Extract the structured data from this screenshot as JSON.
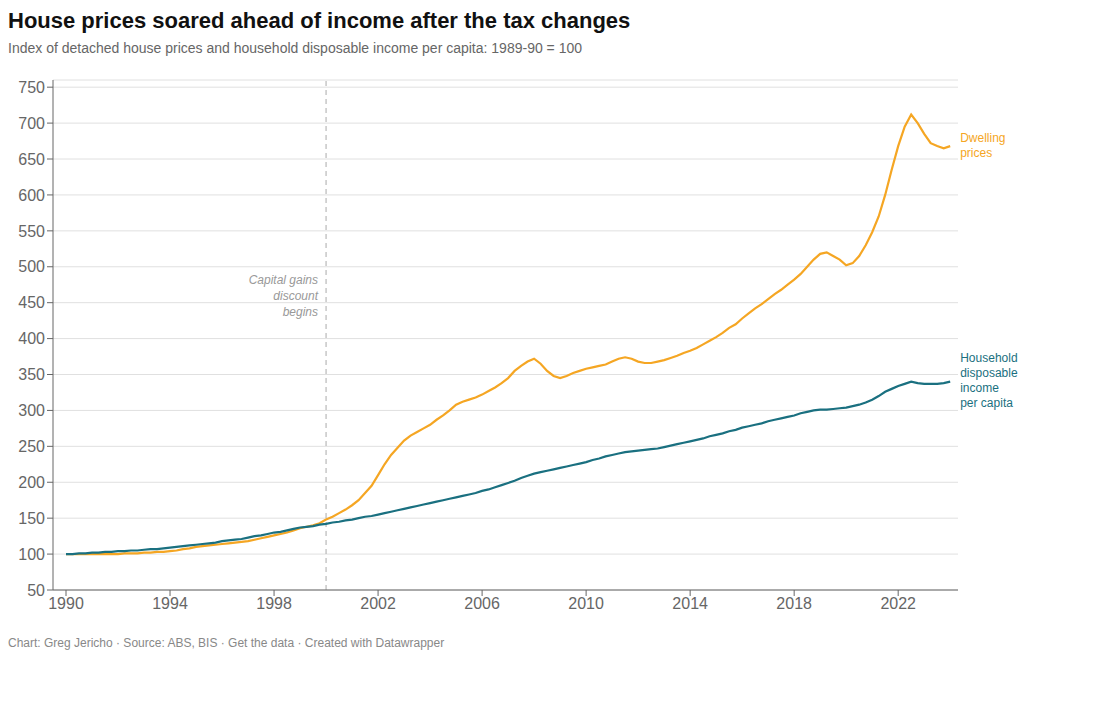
{
  "chart_data": {
    "type": "line",
    "title": "House prices soared ahead of income after the tax changes",
    "subtitle": "Index of detached house prices and household disposable income per capita: 1989-90 = 100",
    "caption": "Chart: Greg Jericho · Source: ABS, BIS · Get the data · Created with Datawrapper",
    "annotations": [
      {
        "text": "Capital gains\ndiscount\nbegins",
        "x": 2000,
        "y": 490
      }
    ],
    "x": [
      1990,
      1990.25,
      1990.5,
      1990.75,
      1991,
      1991.25,
      1991.5,
      1991.75,
      1992,
      1992.25,
      1992.5,
      1992.75,
      1993,
      1993.25,
      1993.5,
      1993.75,
      1994,
      1994.25,
      1994.5,
      1994.75,
      1995,
      1995.25,
      1995.5,
      1995.75,
      1996,
      1996.25,
      1996.5,
      1996.75,
      1997,
      1997.25,
      1997.5,
      1997.75,
      1998,
      1998.25,
      1998.5,
      1998.75,
      1999,
      1999.25,
      1999.5,
      1999.75,
      2000,
      2000.25,
      2000.5,
      2000.75,
      2001,
      2001.25,
      2001.5,
      2001.75,
      2002,
      2002.25,
      2002.5,
      2002.75,
      2003,
      2003.25,
      2003.5,
      2003.75,
      2004,
      2004.25,
      2004.5,
      2004.75,
      2005,
      2005.25,
      2005.5,
      2005.75,
      2006,
      2006.25,
      2006.5,
      2006.75,
      2007,
      2007.25,
      2007.5,
      2007.75,
      2008,
      2008.25,
      2008.5,
      2008.75,
      2009,
      2009.25,
      2009.5,
      2009.75,
      2010,
      2010.25,
      2010.5,
      2010.75,
      2011,
      2011.25,
      2011.5,
      2011.75,
      2012,
      2012.25,
      2012.5,
      2012.75,
      2013,
      2013.25,
      2013.5,
      2013.75,
      2014,
      2014.25,
      2014.5,
      2014.75,
      2015,
      2015.25,
      2015.5,
      2015.75,
      2016,
      2016.25,
      2016.5,
      2016.75,
      2017,
      2017.25,
      2017.5,
      2017.75,
      2018,
      2018.25,
      2018.5,
      2018.75,
      2019,
      2019.25,
      2019.5,
      2019.75,
      2020,
      2020.25,
      2020.5,
      2020.75,
      2021,
      2021.25,
      2021.5,
      2021.75,
      2022,
      2022.25,
      2022.5,
      2022.75,
      2023,
      2023.25,
      2023.5,
      2023.75,
      2024
    ],
    "series": [
      {
        "name": "Dwelling\nprices",
        "color": "#f5a623",
        "values": [
          100,
          100,
          100,
          100,
          100,
          100,
          100,
          100,
          100,
          101,
          101,
          101,
          102,
          102,
          103,
          103,
          104,
          105,
          107,
          108,
          110,
          111,
          112,
          113,
          114,
          115,
          116,
          117,
          118,
          120,
          122,
          124,
          126,
          128,
          130,
          133,
          136,
          138,
          140,
          143,
          148,
          152,
          157,
          162,
          168,
          175,
          185,
          195,
          210,
          225,
          238,
          248,
          258,
          265,
          270,
          275,
          280,
          287,
          293,
          300,
          308,
          312,
          315,
          318,
          322,
          327,
          332,
          338,
          345,
          355,
          362,
          368,
          372,
          365,
          355,
          348,
          345,
          348,
          352,
          355,
          358,
          360,
          362,
          364,
          368,
          372,
          374,
          372,
          368,
          366,
          366,
          368,
          370,
          373,
          376,
          380,
          383,
          387,
          392,
          397,
          402,
          408,
          415,
          420,
          428,
          435,
          442,
          448,
          455,
          462,
          468,
          475,
          482,
          490,
          500,
          510,
          518,
          520,
          515,
          510,
          502,
          505,
          515,
          530,
          548,
          570,
          600,
          635,
          668,
          695,
          712,
          700,
          685,
          672,
          668,
          665,
          668
        ]
      },
      {
        "name": "Household\ndisposable\nincome\nper capita",
        "color": "#1a7080",
        "values": [
          100,
          100,
          101,
          101,
          102,
          102,
          103,
          103,
          104,
          104,
          105,
          105,
          106,
          107,
          107,
          108,
          109,
          110,
          111,
          112,
          113,
          114,
          115,
          116,
          118,
          119,
          120,
          121,
          123,
          125,
          126,
          128,
          130,
          131,
          133,
          135,
          137,
          138,
          139,
          141,
          142,
          144,
          145,
          147,
          148,
          150,
          152,
          153,
          155,
          157,
          159,
          161,
          163,
          165,
          167,
          169,
          171,
          173,
          175,
          177,
          179,
          181,
          183,
          185,
          188,
          190,
          193,
          196,
          199,
          202,
          206,
          209,
          212,
          214,
          216,
          218,
          220,
          222,
          224,
          226,
          228,
          231,
          233,
          236,
          238,
          240,
          242,
          243,
          244,
          245,
          246,
          247,
          249,
          251,
          253,
          255,
          257,
          259,
          261,
          264,
          266,
          268,
          271,
          273,
          276,
          278,
          280,
          282,
          285,
          287,
          289,
          291,
          293,
          296,
          298,
          300,
          301,
          301,
          302,
          303,
          304,
          306,
          308,
          311,
          315,
          320,
          326,
          330,
          334,
          337,
          340,
          338,
          337,
          337,
          337,
          338,
          340
        ]
      }
    ],
    "xlim": [
      1989.5,
      2024.3
    ],
    "xticks": [
      1990,
      1994,
      1998,
      2002,
      2006,
      2010,
      2014,
      2018,
      2022
    ],
    "ylim": [
      50,
      760
    ],
    "yticks": [
      50,
      100,
      150,
      200,
      250,
      300,
      350,
      400,
      450,
      500,
      550,
      600,
      650,
      700,
      750
    ],
    "grid": "y"
  }
}
